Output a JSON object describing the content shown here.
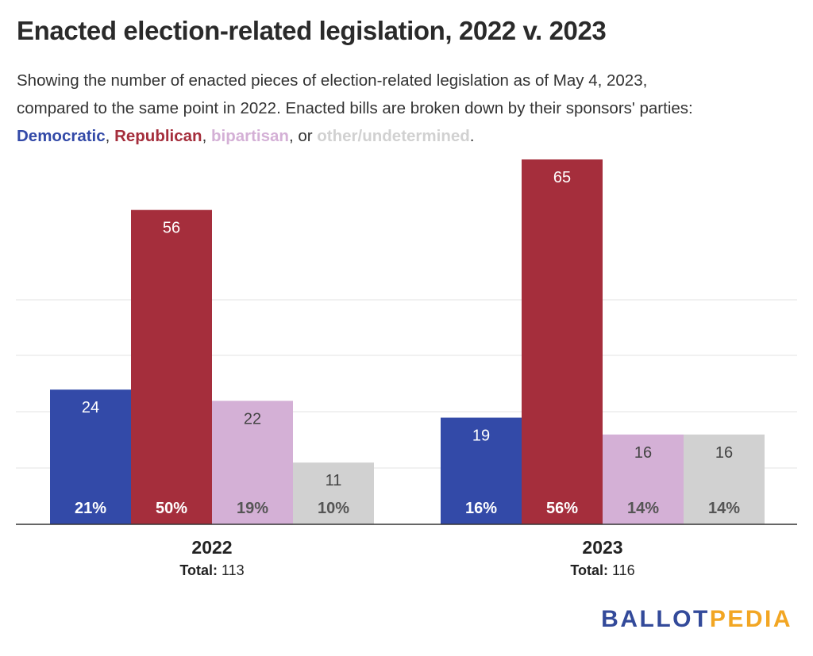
{
  "title": "Enacted election-related legislation, 2022 v. 2023",
  "subtitle": {
    "line1": "Showing the number of enacted pieces of election-related legislation as of May 4, 2023,",
    "line2": "compared to the same point in 2022. Enacted bills are broken down by their sponsors' parties:",
    "dem": "Democratic",
    "sep1": ", ",
    "rep": "Republican",
    "sep2": ", ",
    "bip": "bipartisan",
    "sep3": ", or ",
    "oth": "other/undetermined",
    "end": "."
  },
  "colors": {
    "Democratic": "#334aa8",
    "Republican": "#a52e3c",
    "bipartisan": "#d4b0d6",
    "other": "#d1d1d1"
  },
  "logo": {
    "part1": "BALLOT",
    "part2": "PEDIA"
  },
  "chart_data": {
    "type": "bar",
    "categories": [
      "2022",
      "2023"
    ],
    "category_totals_label": "Total:",
    "category_totals": [
      "113",
      "116"
    ],
    "series": [
      {
        "name": "Democratic",
        "values": [
          24,
          19
        ],
        "percent_labels": [
          "21%",
          "16%"
        ],
        "value_label_color": "#ffffff",
        "percent_label_color": "#ffffff"
      },
      {
        "name": "Republican",
        "values": [
          56,
          65
        ],
        "percent_labels": [
          "50%",
          "56%"
        ],
        "value_label_color": "#ffffff",
        "percent_label_color": "#ffffff"
      },
      {
        "name": "bipartisan",
        "values": [
          22,
          16
        ],
        "percent_labels": [
          "19%",
          "14%"
        ],
        "value_label_color": "#444444",
        "percent_label_color": "#555555"
      },
      {
        "name": "other/undetermined",
        "values": [
          11,
          16
        ],
        "percent_labels": [
          "10%",
          "14%"
        ],
        "value_label_color": "#444444",
        "percent_label_color": "#555555"
      }
    ],
    "ylim": [
      0,
      65
    ],
    "grid": true,
    "legend": "in subtitle"
  }
}
